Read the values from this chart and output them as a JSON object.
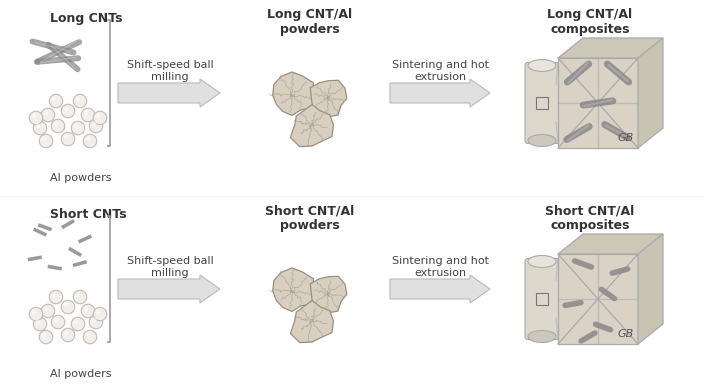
{
  "bg_color": "#ffffff",
  "title_color": "#333333",
  "label_color": "#444444",
  "cnt_long_color": "#888888",
  "cnt_short_color": "#888888",
  "powder_fill": "#d8cfc0",
  "powder_edge": "#9a9080",
  "ball_fill": "#f2eeea",
  "ball_edge": "#c0bbb5",
  "composite_fill": "#ddd8cc",
  "composite_edge": "#aaaaaa",
  "arrow_color": "#cccccc",
  "bracket_color": "#999999",
  "row_labels_top": [
    "Long CNTs",
    "Long CNT/Al\npowders",
    "Long CNT/Al\ncomposites"
  ],
  "row_labels_bot": [
    "Short CNTs",
    "Short CNT/Al\npowders",
    "Short CNT/Al\ncomposites"
  ],
  "step1_label": "Shift-speed ball\nmilling",
  "step2_label": "Sintering and hot\nextrusion",
  "al_label": "Al powders",
  "gb_label": "GB",
  "font_size_title": 9,
  "font_size_step": 8,
  "font_size_label": 8
}
